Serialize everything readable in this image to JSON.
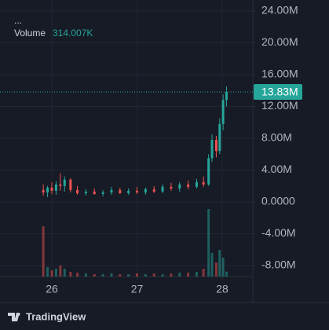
{
  "chart_data": {
    "type": "candlestick",
    "legend_dots": "...",
    "volume_label": "Volume",
    "volume_value": "314.007K",
    "x": [
      25.9,
      25.95,
      26,
      26.05,
      26.1,
      26.15,
      26.22,
      26.3,
      26.4,
      26.5,
      26.6,
      26.7,
      26.8,
      26.9,
      27,
      27.1,
      27.2,
      27.3,
      27.4,
      27.5,
      27.6,
      27.7,
      27.78,
      27.84,
      27.88,
      27.93,
      27.97,
      28.01,
      28.05
    ],
    "open": [
      1500000,
      1200000,
      1800000,
      1400000,
      2200000,
      2000000,
      2800000,
      1500000,
      1100000,
      1300000,
      1000000,
      1200000,
      1500000,
      1100000,
      1400000,
      1200000,
      1600000,
      1300000,
      1900000,
      1700000,
      2200000,
      1900000,
      2500000,
      2200000,
      5500000,
      7800000,
      6400000,
      9800000,
      12800000
    ],
    "high": [
      2200000,
      2000000,
      2500000,
      2600000,
      3600000,
      3200000,
      3000000,
      2000000,
      1600000,
      1700000,
      1500000,
      1900000,
      1800000,
      1700000,
      1900000,
      1800000,
      2000000,
      2200000,
      2400000,
      2500000,
      2700000,
      2900000,
      3200000,
      6000000,
      8500000,
      8300000,
      10500000,
      13500000,
      14500000
    ],
    "low": [
      800000,
      600000,
      1000000,
      900000,
      1400000,
      1300000,
      1200000,
      900000,
      800000,
      900000,
      700000,
      900000,
      1000000,
      900000,
      1000000,
      900000,
      1100000,
      1100000,
      1400000,
      1300000,
      1600000,
      1700000,
      1900000,
      2000000,
      5000000,
      5600000,
      6000000,
      9000000,
      12000000
    ],
    "close": [
      1200000,
      1800000,
      1400000,
      2200000,
      2000000,
      2800000,
      1500000,
      1100000,
      1300000,
      1000000,
      1200000,
      1500000,
      1100000,
      1400000,
      1200000,
      1600000,
      1300000,
      1900000,
      1700000,
      2200000,
      1900000,
      2500000,
      2200000,
      5500000,
      7800000,
      6400000,
      9800000,
      12800000,
      13830000
    ],
    "volume": [
      3200000,
      600000,
      400000,
      500000,
      700000,
      500000,
      300000,
      250000,
      200000,
      150000,
      150000,
      200000,
      150000,
      150000,
      200000,
      150000,
      200000,
      150000,
      200000,
      250000,
      250000,
      300000,
      500000,
      4300000,
      1500000,
      900000,
      1700000,
      1200000,
      314007
    ],
    "up_color": "#26a69a",
    "down_color": "#ef5350",
    "xlim": [
      25.392,
      28.359
    ],
    "xticks": [
      26,
      27,
      28
    ],
    "ylim": [
      -9380000,
      25380000
    ],
    "yticks": [
      {
        "value": 24000000,
        "label": "24.00M"
      },
      {
        "value": 20000000,
        "label": "20.00M"
      },
      {
        "value": 16000000,
        "label": "16.00M"
      },
      {
        "value": 12000000,
        "label": "12.00M"
      },
      {
        "value": 8000000,
        "label": "8.00M"
      },
      {
        "value": 4000000,
        "label": "4.00M"
      },
      {
        "value": 0,
        "label": "0.0000"
      },
      {
        "value": -4000000,
        "label": "-4.00M"
      },
      {
        "value": -8000000,
        "label": "-8.00M"
      }
    ],
    "vlim": [
      0,
      5000000
    ],
    "last_price": {
      "value": 13830000,
      "label": "13.83M"
    },
    "grid": true,
    "brand": "TradingView"
  }
}
